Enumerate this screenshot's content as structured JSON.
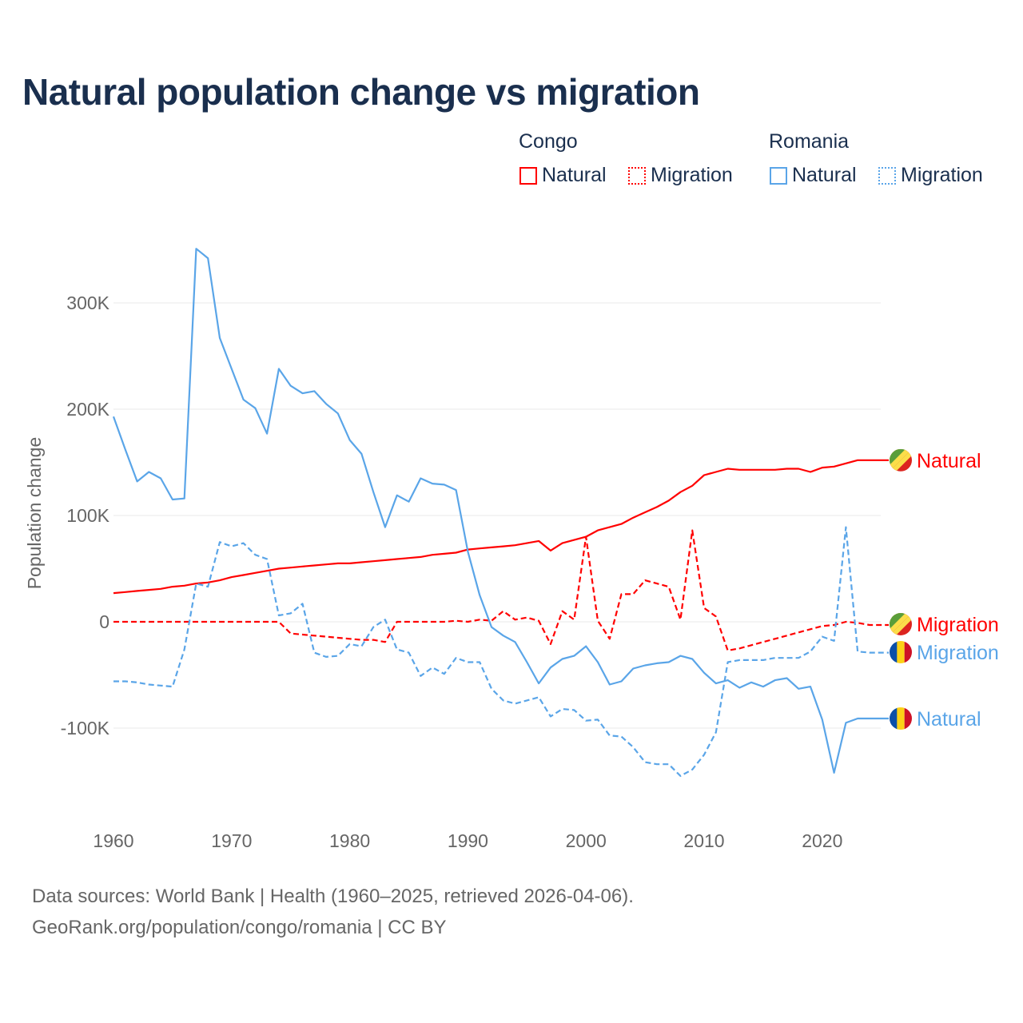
{
  "chart_data": {
    "type": "line",
    "title": "Natural population change vs migration",
    "ylabel": "Population change",
    "xlabel": "",
    "xlim": [
      1960,
      2025
    ],
    "ylim": [
      -160000,
      360000
    ],
    "x_ticks": [
      1960,
      1970,
      1980,
      1990,
      2000,
      2010,
      2020
    ],
    "x_tick_labels": [
      "1960",
      "1970",
      "1980",
      "1990",
      "2000",
      "2010",
      "2020"
    ],
    "y_ticks": [
      -100000,
      0,
      100000,
      200000,
      300000
    ],
    "y_tick_labels": [
      "-100K",
      "0",
      "100K",
      "200K",
      "300K"
    ],
    "grid": true,
    "legend_placement": "top-right",
    "legend": {
      "groups": [
        {
          "country": "Congo",
          "items": [
            "Natural",
            "Migration"
          ]
        },
        {
          "country": "Romania",
          "items": [
            "Natural",
            "Migration"
          ]
        }
      ]
    },
    "x_start": 1960,
    "series": [
      {
        "name": "Congo Natural",
        "country": "Congo",
        "kind": "Natural",
        "color": "#ff0000",
        "dash": false,
        "end_label": "Natural",
        "flag": "congo",
        "values": [
          27,
          28,
          29,
          30,
          31,
          33,
          34,
          36,
          37,
          39,
          42,
          44,
          46,
          48,
          50,
          51,
          52,
          53,
          54,
          55,
          55,
          56,
          57,
          58,
          59,
          60,
          61,
          63,
          64,
          65,
          68,
          69,
          70,
          71,
          72,
          74,
          76,
          67,
          74,
          77,
          80,
          86,
          89,
          92,
          98,
          103,
          108,
          114,
          122,
          128,
          138,
          141,
          144,
          143,
          143,
          143,
          143,
          144,
          144,
          141,
          145,
          146,
          149,
          152,
          152,
          152
        ]
      },
      {
        "name": "Congo Migration",
        "country": "Congo",
        "kind": "Migration",
        "color": "#ff0000",
        "dash": true,
        "end_label": "Migration",
        "flag": "congo",
        "values": [
          0,
          0,
          0,
          0,
          0,
          0,
          0,
          0,
          0,
          0,
          0,
          0,
          0,
          0,
          0,
          -11,
          -12,
          -13,
          -14,
          -15,
          -16,
          -17,
          -17,
          -19,
          0,
          0,
          0,
          0,
          0,
          1,
          0,
          2,
          1,
          10,
          2,
          4,
          1,
          -21,
          10,
          2,
          80,
          1,
          -16,
          26,
          26,
          39,
          36,
          33,
          2,
          86,
          13,
          5,
          -27,
          -25,
          -22,
          -19,
          -16,
          -13,
          -10,
          -7,
          -4,
          -3,
          0,
          -1,
          -3,
          -3
        ]
      },
      {
        "name": "Romania Natural",
        "country": "Romania",
        "kind": "Natural",
        "color": "#5aa5e8",
        "dash": false,
        "end_label": "Natural",
        "flag": "romania",
        "values": [
          193,
          162,
          132,
          141,
          135,
          115,
          116,
          351,
          342,
          267,
          238,
          209,
          201,
          177,
          238,
          222,
          215,
          217,
          205,
          196,
          171,
          158,
          122,
          89,
          119,
          113,
          135,
          130,
          129,
          124,
          66,
          25,
          -5,
          -13,
          -19,
          -38,
          -58,
          -43,
          -35,
          -32,
          -23,
          -38,
          -59,
          -56,
          -44,
          -41,
          -39,
          -38,
          -32,
          -35,
          -48,
          -58,
          -55,
          -62,
          -57,
          -61,
          -55,
          -53,
          -63,
          -61,
          -92,
          -142,
          -95,
          -91,
          -91,
          -91
        ]
      },
      {
        "name": "Romania Migration",
        "country": "Romania",
        "kind": "Migration",
        "color": "#5aa5e8",
        "dash": true,
        "end_label": "Migration",
        "flag": "romania",
        "values": [
          -56,
          -56,
          -57,
          -59,
          -60,
          -61,
          -26,
          36,
          33,
          75,
          71,
          74,
          63,
          59,
          6,
          8,
          17,
          -29,
          -33,
          -32,
          -21,
          -23,
          -5,
          2,
          -26,
          -29,
          -51,
          -43,
          -49,
          -34,
          -38,
          -38,
          -63,
          -74,
          -77,
          -74,
          -71,
          -89,
          -82,
          -83,
          -93,
          -92,
          -107,
          -108,
          -118,
          -132,
          -134,
          -134,
          -145,
          -139,
          -125,
          -104,
          -38,
          -36,
          -36,
          -36,
          -34,
          -34,
          -34,
          -28,
          -14,
          -18,
          89,
          -28,
          -29,
          -29
        ]
      }
    ],
    "value_unit": "thousands"
  },
  "source": {
    "line1": "Data sources: World Bank | Health (1960–2025, retrieved 2026-04-06).",
    "line2": "GeoRank.org/population/congo/romania | CC BY"
  }
}
